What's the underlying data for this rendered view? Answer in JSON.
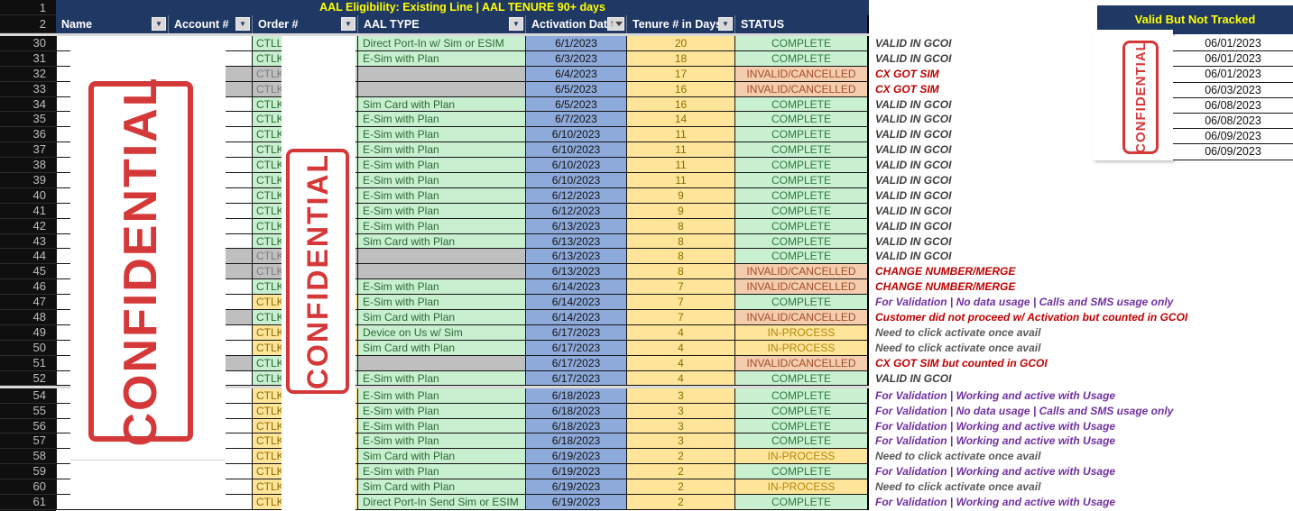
{
  "title": "AAL Eligibility: Existing Line | AAL TENURE 90+ days",
  "stamp_text": "CONFIDENTIAL",
  "row_headers": {
    "row1": "1",
    "row2": "2"
  },
  "columns": [
    {
      "key": "name",
      "label": "Name",
      "filter": "dropdown"
    },
    {
      "key": "account",
      "label": "Account #",
      "filter": "dropdown"
    },
    {
      "key": "order",
      "label": "Order #",
      "filter": "dropdown"
    },
    {
      "key": "aal",
      "label": "AAL TYPE",
      "filter": "dropdown"
    },
    {
      "key": "date",
      "label": "Activation Date",
      "filter": "sort-filter"
    },
    {
      "key": "tenure",
      "label": "Tenure # in Days",
      "filter": "dropdown"
    },
    {
      "key": "status",
      "label": "STATUS",
      "filter": "none"
    }
  ],
  "filter_icon": "▼",
  "sort_arrow": "↑",
  "rows": [
    {
      "n": "30",
      "order": "CTLL",
      "oc": "g",
      "acct_gray": false,
      "aal": "Direct Port-In w/ Sim or ESIM",
      "aal_gray": false,
      "date": "6/1/2023",
      "tenure": "20",
      "status": "COMPLETE",
      "st": "complete",
      "note": "VALID IN GCOI",
      "nc": "dark"
    },
    {
      "n": "31",
      "order": "CTLK",
      "oc": "g",
      "acct_gray": false,
      "aal": "E-Sim with Plan",
      "aal_gray": false,
      "date": "6/3/2023",
      "tenure": "18",
      "status": "COMPLETE",
      "st": "complete",
      "note": "VALID IN GCOI",
      "nc": "dark"
    },
    {
      "n": "32",
      "order": "CTLK",
      "oc": "x",
      "acct_gray": true,
      "aal": "",
      "aal_gray": true,
      "date": "6/4/2023",
      "tenure": "17",
      "status": "INVALID/CANCELLED",
      "st": "invalid",
      "note": "CX GOT SIM",
      "nc": "red"
    },
    {
      "n": "33",
      "order": "CTLK",
      "oc": "x",
      "acct_gray": true,
      "aal": "",
      "aal_gray": true,
      "date": "6/5/2023",
      "tenure": "16",
      "status": "INVALID/CANCELLED",
      "st": "invalid",
      "note": "CX GOT SIM",
      "nc": "red"
    },
    {
      "n": "34",
      "order": "CTLK",
      "oc": "g",
      "acct_gray": false,
      "aal": "Sim Card with Plan",
      "aal_gray": false,
      "date": "6/5/2023",
      "tenure": "16",
      "status": "COMPLETE",
      "st": "complete",
      "note": "VALID IN GCOI",
      "nc": "dark"
    },
    {
      "n": "35",
      "order": "CTLK",
      "oc": "g",
      "acct_gray": false,
      "aal": "E-Sim with Plan",
      "aal_gray": false,
      "date": "6/7/2023",
      "tenure": "14",
      "status": "COMPLETE",
      "st": "complete",
      "note": "VALID IN GCOI",
      "nc": "dark"
    },
    {
      "n": "36",
      "order": "CTLK",
      "oc": "g",
      "acct_gray": false,
      "aal": "E-Sim with Plan",
      "aal_gray": false,
      "date": "6/10/2023",
      "tenure": "11",
      "status": "COMPLETE",
      "st": "complete",
      "note": "VALID IN GCOI",
      "nc": "dark"
    },
    {
      "n": "37",
      "order": "CTLK",
      "oc": "g",
      "acct_gray": false,
      "aal": "E-Sim with Plan",
      "aal_gray": false,
      "date": "6/10/2023",
      "tenure": "11",
      "status": "COMPLETE",
      "st": "complete",
      "note": "VALID IN GCOI",
      "nc": "dark"
    },
    {
      "n": "38",
      "order": "CTLK",
      "oc": "g",
      "acct_gray": false,
      "aal": "E-Sim with Plan",
      "aal_gray": false,
      "date": "6/10/2023",
      "tenure": "11",
      "status": "COMPLETE",
      "st": "complete",
      "note": "VALID IN GCOI",
      "nc": "dark"
    },
    {
      "n": "39",
      "order": "CTLK",
      "oc": "g",
      "acct_gray": false,
      "aal": "E-Sim with Plan",
      "aal_gray": false,
      "date": "6/10/2023",
      "tenure": "11",
      "status": "COMPLETE",
      "st": "complete",
      "note": "VALID IN GCOI",
      "nc": "dark"
    },
    {
      "n": "40",
      "order": "CTLK",
      "oc": "g",
      "acct_gray": false,
      "aal": "E-Sim with Plan",
      "aal_gray": false,
      "date": "6/12/2023",
      "tenure": "9",
      "status": "COMPLETE",
      "st": "complete",
      "note": "VALID IN GCOI",
      "nc": "dark"
    },
    {
      "n": "41",
      "order": "CTLK",
      "oc": "g",
      "acct_gray": false,
      "aal": "E-Sim with Plan",
      "aal_gray": false,
      "date": "6/12/2023",
      "tenure": "9",
      "status": "COMPLETE",
      "st": "complete",
      "note": "VALID IN GCOI",
      "nc": "dark"
    },
    {
      "n": "42",
      "order": "CTLK",
      "oc": "g",
      "acct_gray": false,
      "aal": "E-Sim with Plan",
      "aal_gray": false,
      "date": "6/13/2023",
      "tenure": "8",
      "status": "COMPLETE",
      "st": "complete",
      "note": "VALID IN GCOI",
      "nc": "dark"
    },
    {
      "n": "43",
      "order": "CTLK",
      "oc": "g",
      "acct_gray": false,
      "aal": "Sim Card with Plan",
      "aal_gray": false,
      "date": "6/13/2023",
      "tenure": "8",
      "status": "COMPLETE",
      "st": "complete",
      "note": "VALID IN GCOI",
      "nc": "dark"
    },
    {
      "n": "44",
      "order": "CTLK",
      "oc": "x",
      "acct_gray": true,
      "aal": "",
      "aal_gray": true,
      "date": "6/13/2023",
      "tenure": "8",
      "status": "COMPLETE",
      "st": "complete",
      "note": "VALID IN GCOI",
      "nc": "dark"
    },
    {
      "n": "45",
      "order": "CTLK",
      "oc": "x",
      "acct_gray": true,
      "aal": "",
      "aal_gray": true,
      "date": "6/13/2023",
      "tenure": "8",
      "status": "INVALID/CANCELLED",
      "st": "invalid",
      "note": "CHANGE NUMBER/MERGE",
      "nc": "red"
    },
    {
      "n": "46",
      "order": "CTLK",
      "oc": "g",
      "acct_gray": false,
      "aal": "E-Sim with Plan",
      "aal_gray": false,
      "date": "6/14/2023",
      "tenure": "7",
      "status": "INVALID/CANCELLED",
      "st": "invalid",
      "note": "CHANGE NUMBER/MERGE",
      "nc": "red"
    },
    {
      "n": "47",
      "order": "CTLK",
      "oc": "y",
      "acct_gray": false,
      "aal": "E-Sim with Plan",
      "aal_gray": false,
      "date": "6/14/2023",
      "tenure": "7",
      "status": "COMPLETE",
      "st": "complete",
      "note": "For Validation | No data usage | Calls and SMS usage only",
      "nc": "purple"
    },
    {
      "n": "48",
      "order": "CTLK",
      "oc": "g",
      "acct_gray": true,
      "aal": "Sim Card with Plan",
      "aal_gray": false,
      "date": "6/14/2023",
      "tenure": "7",
      "status": "INVALID/CANCELLED",
      "st": "invalid",
      "note": "Customer did not proceed w/ Activation but counted in GCOI",
      "nc": "red"
    },
    {
      "n": "49",
      "order": "CTLK",
      "oc": "y",
      "acct_gray": false,
      "aal": "Device on Us w/ Sim",
      "aal_gray": false,
      "date": "6/17/2023",
      "tenure": "4",
      "status": "IN-PROCESS",
      "st": "inprocess",
      "note": "Need to click activate once avail",
      "nc": "gray"
    },
    {
      "n": "50",
      "order": "CTLK",
      "oc": "y",
      "acct_gray": false,
      "aal": "Sim Card with Plan",
      "aal_gray": false,
      "date": "6/17/2023",
      "tenure": "4",
      "status": "IN-PROCESS",
      "st": "inprocess",
      "note": "Need to click activate once avail",
      "nc": "gray"
    },
    {
      "n": "51",
      "order": "CTLK",
      "oc": "g",
      "acct_gray": true,
      "aal": "",
      "aal_gray": true,
      "date": "6/17/2023",
      "tenure": "4",
      "status": "INVALID/CANCELLED",
      "st": "invalid",
      "note": "CX GOT SIM but counted in GCOI",
      "nc": "red"
    },
    {
      "n": "52",
      "order": "CTLK",
      "oc": "g",
      "acct_gray": false,
      "aal": "E-Sim with Plan",
      "aal_gray": false,
      "date": "6/17/2023",
      "tenure": "4",
      "status": "COMPLETE",
      "st": "complete",
      "note": "VALID IN GCOI",
      "nc": "dark",
      "hidden_after": true
    },
    {
      "n": "54",
      "order": "CTLK",
      "oc": "y",
      "acct_gray": false,
      "aal": "E-Sim with Plan",
      "aal_gray": false,
      "date": "6/18/2023",
      "tenure": "3",
      "status": "COMPLETE",
      "st": "complete",
      "note": "For Validation | Working and active with Usage",
      "nc": "purple"
    },
    {
      "n": "55",
      "order": "CTLK",
      "oc": "y",
      "acct_gray": false,
      "aal": "E-Sim with Plan",
      "aal_gray": false,
      "date": "6/18/2023",
      "tenure": "3",
      "status": "COMPLETE",
      "st": "complete",
      "note": "For Validation | No data usage | Calls and SMS usage only",
      "nc": "purple"
    },
    {
      "n": "56",
      "order": "CTLK",
      "oc": "y",
      "acct_gray": false,
      "aal": "E-Sim with Plan",
      "aal_gray": false,
      "date": "6/18/2023",
      "tenure": "3",
      "status": "COMPLETE",
      "st": "complete",
      "note": "For Validation | Working and active with Usage",
      "nc": "purple"
    },
    {
      "n": "57",
      "order": "CTLK",
      "oc": "y",
      "acct_gray": false,
      "aal": "E-Sim with Plan",
      "aal_gray": false,
      "date": "6/18/2023",
      "tenure": "3",
      "status": "COMPLETE",
      "st": "complete",
      "note": "For Validation | Working and active with Usage",
      "nc": "purple"
    },
    {
      "n": "58",
      "order": "CTLK",
      "oc": "y",
      "acct_gray": false,
      "aal": "Sim Card with Plan",
      "aal_gray": false,
      "date": "6/19/2023",
      "tenure": "2",
      "status": "IN-PROCESS",
      "st": "inprocess",
      "note": "Need to click activate once avail",
      "nc": "gray"
    },
    {
      "n": "59",
      "order": "CTLK",
      "oc": "y",
      "acct_gray": false,
      "aal": "E-Sim with Plan",
      "aal_gray": false,
      "date": "6/19/2023",
      "tenure": "2",
      "status": "COMPLETE",
      "st": "complete",
      "note": "For Validation | Working and active with Usage",
      "nc": "purple"
    },
    {
      "n": "60",
      "order": "CTLK",
      "oc": "y",
      "acct_gray": false,
      "aal": "Sim Card with Plan",
      "aal_gray": false,
      "date": "6/19/2023",
      "tenure": "2",
      "status": "IN-PROCESS",
      "st": "inprocess",
      "note": "Need to click activate once avail",
      "nc": "gray"
    },
    {
      "n": "61",
      "order": "CTLK",
      "oc": "y",
      "acct_gray": false,
      "aal": "Direct Port-In Send Sim or ESIM",
      "aal_gray": false,
      "date": "6/19/2023",
      "tenure": "2",
      "status": "COMPLETE",
      "st": "complete",
      "note": "For Validation | Working and active with Usage",
      "nc": "purple"
    }
  ],
  "side_panel": {
    "title": "Valid But Not Tracked",
    "dates": [
      "06/01/2023",
      "06/01/2023",
      "06/01/2023",
      "06/03/2023",
      "06/08/2023",
      "06/08/2023",
      "06/09/2023",
      "06/09/2023"
    ]
  },
  "colors": {
    "header_navy": "#1F3864",
    "title_yellow": "#FFFF00",
    "stamp_red": "#CF1D1D",
    "cell_green": "#C8EFD0",
    "cell_blue": "#8EAADB",
    "cell_yellow": "#FFE599",
    "cell_gray": "#BFBFBF",
    "status_invalid_bg": "#F4CCAE",
    "note_red": "#C00000",
    "note_purple": "#7030A0"
  }
}
